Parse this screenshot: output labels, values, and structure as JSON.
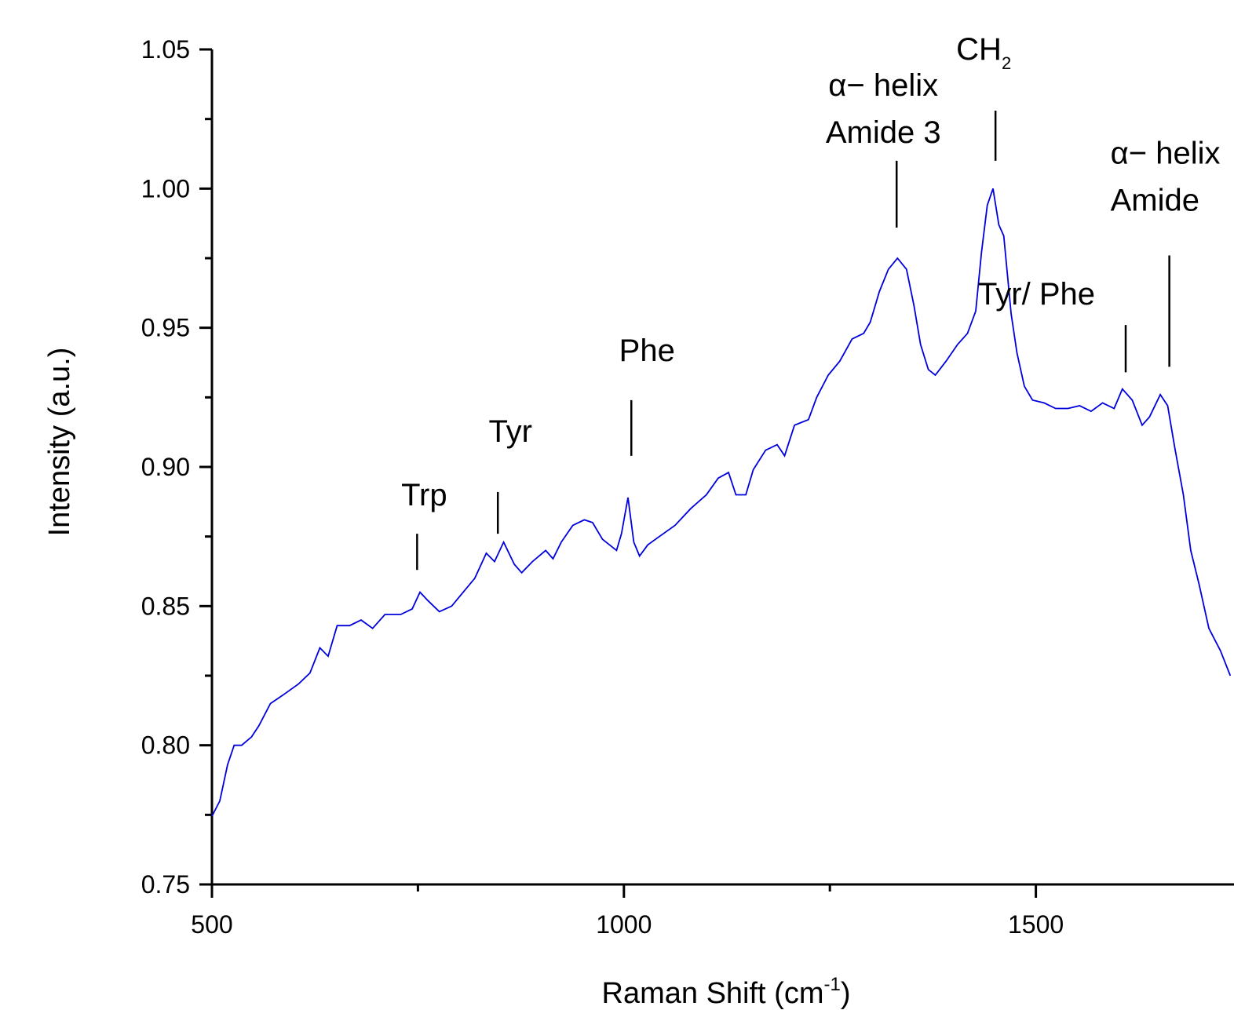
{
  "chart_data": {
    "type": "line",
    "x_label": {
      "text": "Raman Shift (cm",
      "superscript": "-1",
      "suffix": ")"
    },
    "y_label": "Intensity (a.u.)",
    "color": "#0000dd",
    "xlim": [
      500,
      1741
    ],
    "ylim": [
      0.75,
      1.05
    ],
    "xticks": [
      500,
      1000,
      1500
    ],
    "xminorticks": [
      750,
      1250
    ],
    "yticks": [
      {
        "value": 0.75,
        "label": "0.75"
      },
      {
        "value": 0.8,
        "label": "0.80"
      },
      0.85,
      {
        "value": 0.9,
        "label": "0.90"
      },
      0.95,
      {
        "value": 1,
        "label": "1.00"
      },
      1.05
    ],
    "yminorticks": [
      0.775,
      0.825,
      0.875,
      0.925,
      0.975,
      1.025
    ],
    "x": [
      500,
      509.5,
      519,
      527,
      536,
      548,
      557,
      571,
      586,
      605,
      619,
      631,
      641,
      652,
      667,
      681,
      695,
      710,
      729,
      743,
      752.5,
      762,
      776,
      791,
      805,
      819,
      833,
      843,
      854,
      867,
      876,
      889,
      905,
      914,
      924,
      938,
      952,
      962,
      974,
      991,
      997,
      1005,
      1012,
      1019,
      1029,
      1043,
      1062,
      1081,
      1100,
      1114.5,
      1127,
      1136,
      1148,
      1157,
      1172,
      1186,
      1195,
      1207,
      1224,
      1234,
      1248,
      1262,
      1277,
      1291,
      1299,
      1310,
      1321,
      1332,
      1343,
      1352,
      1360,
      1369.5,
      1378,
      1391,
      1405,
      1417,
      1427,
      1434,
      1441,
      1448,
      1455,
      1461,
      1470,
      1477,
      1486,
      1496,
      1510,
      1524,
      1539,
      1553,
      1567,
      1581,
      1595,
      1605,
      1617,
      1629,
      1638,
      1651,
      1660,
      1668.5,
      1679,
      1688,
      1698,
      1710,
      1724,
      1736
    ],
    "values": [
      0.7745,
      0.78,
      0.793,
      0.8,
      0.8,
      0.803,
      0.807,
      0.815,
      0.818,
      0.822,
      0.826,
      0.835,
      0.832,
      0.843,
      0.843,
      0.845,
      0.842,
      0.847,
      0.847,
      0.849,
      0.855,
      0.852,
      0.848,
      0.85,
      0.855,
      0.86,
      0.869,
      0.866,
      0.873,
      0.865,
      0.862,
      0.866,
      0.87,
      0.867,
      0.873,
      0.879,
      0.881,
      0.88,
      0.874,
      0.87,
      0.876,
      0.889,
      0.873,
      0.868,
      0.872,
      0.875,
      0.879,
      0.885,
      0.89,
      0.896,
      0.898,
      0.89,
      0.89,
      0.899,
      0.906,
      0.908,
      0.904,
      0.915,
      0.917,
      0.925,
      0.933,
      0.938,
      0.946,
      0.948,
      0.952,
      0.963,
      0.971,
      0.975,
      0.971,
      0.958,
      0.944,
      0.935,
      0.933,
      0.938,
      0.944,
      0.948,
      0.956,
      0.977,
      0.994,
      1.0,
      0.987,
      0.983,
      0.955,
      0.941,
      0.929,
      0.924,
      0.923,
      0.921,
      0.921,
      0.922,
      0.92,
      0.923,
      0.921,
      0.928,
      0.924,
      0.915,
      0.918,
      0.926,
      0.922,
      0.907,
      0.89,
      0.87,
      0.858,
      0.842,
      0.834,
      0.825
    ],
    "annotations": [
      {
        "lines": [
          "Trp"
        ],
        "x": 749,
        "y": [
          0.876,
          0.863
        ]
      },
      {
        "lines": [
          "Tyr"
        ],
        "x": 847,
        "y": [
          0.891,
          0.876
        ]
      },
      {
        "lines": [
          "Phe"
        ],
        "x": 1009,
        "y": [
          0.924,
          0.904
        ]
      },
      {
        "lines": [
          "α− helix",
          "Amide 3"
        ],
        "x": 1331,
        "y": [
          1.01,
          0.986
        ]
      },
      {
        "lines": [
          "CH"
        ],
        "subscript": "2",
        "x": 1451,
        "y": [
          1.028,
          1.01
        ]
      },
      {
        "lines": [
          "Tyr/ Phe"
        ],
        "x": 1609,
        "y": [
          0.951,
          0.934
        ]
      },
      {
        "lines": [
          "α− helix",
          "Amide"
        ],
        "x": 1662,
        "y": [
          0.976,
          0.936
        ]
      }
    ]
  }
}
